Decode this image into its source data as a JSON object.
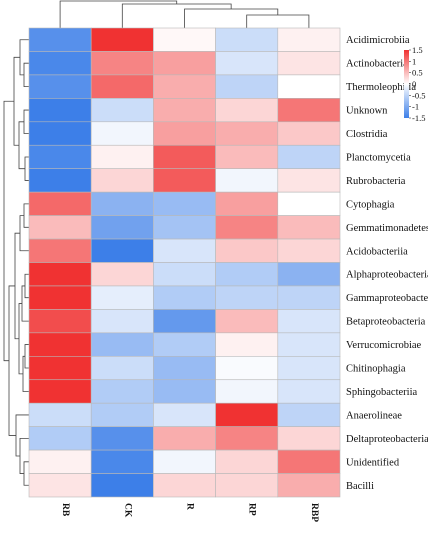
{
  "chart_data": {
    "type": "heatmap",
    "columns": [
      "RB",
      "CK",
      "R",
      "RP",
      "RBP"
    ],
    "rows": [
      "Acidimicrobiia",
      "Actinobacteria",
      "Thermoleophilia",
      "Unknown",
      "Clostridia",
      "Planctomycetia",
      "Rubrobacteria",
      "Cytophagia",
      "Gemmatimonadetes",
      "Acidobacteriia",
      "Alphaproteobacteria",
      "Gammaproteobacteria",
      "Betaproteobacteria",
      "Verrucomicrobiae",
      "Chitinophagia",
      "Sphingobacteriia",
      "Anaerolineae",
      "Deltaproteobacteria",
      "Unidentified",
      "Bacilli"
    ],
    "values": [
      [
        -1.3,
        1.5,
        0.05,
        -0.4,
        0.1
      ],
      [
        -1.4,
        0.9,
        0.7,
        -0.3,
        0.2
      ],
      [
        -1.3,
        1.1,
        0.6,
        -0.5,
        0.0
      ],
      [
        -1.5,
        -0.4,
        0.6,
        0.3,
        1.0
      ],
      [
        -1.6,
        -0.1,
        0.7,
        0.6,
        0.4
      ],
      [
        -1.4,
        0.1,
        1.2,
        0.5,
        -0.5
      ],
      [
        -1.5,
        0.3,
        1.2,
        -0.1,
        0.2
      ],
      [
        1.1,
        -0.9,
        -0.8,
        0.7,
        0.0
      ],
      [
        0.5,
        -1.1,
        -0.7,
        0.9,
        0.5
      ],
      [
        1.0,
        -1.5,
        -0.3,
        0.4,
        0.3
      ],
      [
        1.6,
        0.3,
        -0.4,
        -0.6,
        -0.9
      ],
      [
        1.7,
        -0.2,
        -0.6,
        -0.5,
        -0.5
      ],
      [
        1.3,
        -0.3,
        -1.2,
        0.5,
        -0.3
      ],
      [
        1.5,
        -0.8,
        -0.6,
        0.1,
        -0.3
      ],
      [
        1.6,
        -0.4,
        -0.8,
        -0.05,
        -0.3
      ],
      [
        1.6,
        -0.6,
        -0.8,
        -0.1,
        -0.3
      ],
      [
        -0.4,
        -0.6,
        -0.3,
        1.8,
        -0.5
      ],
      [
        -0.6,
        -1.3,
        0.6,
        0.9,
        0.3
      ],
      [
        0.1,
        -1.4,
        -0.1,
        0.3,
        1.0
      ],
      [
        0.2,
        -1.8,
        0.3,
        0.3,
        0.6
      ]
    ],
    "colorbar": {
      "ticks": [
        1.5,
        1,
        0.5,
        0,
        -0.5,
        -1,
        -1.5
      ],
      "min": -1.5,
      "max": 1.5
    },
    "colors": {
      "low": "#3d7fe8",
      "mid": "#ffffff",
      "high": "#f03232"
    },
    "title": "",
    "xlabel": "",
    "ylabel": ""
  }
}
